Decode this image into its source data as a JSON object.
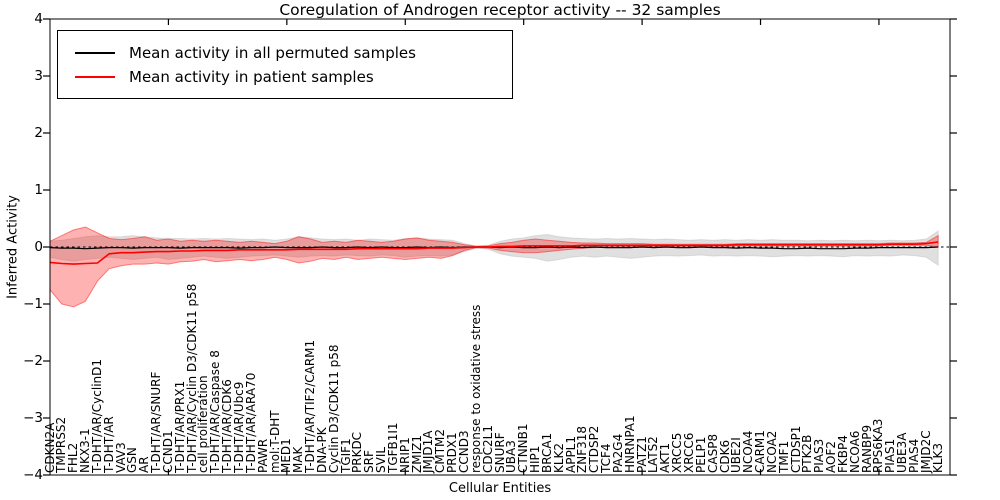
{
  "figure": {
    "title": "Coregulation of Androgen receptor activity -- 32 samples",
    "xlabel": "Cellular Entities",
    "ylabel": "Inferred Activity"
  },
  "legend": {
    "items": [
      {
        "label": "Mean activity in all permuted samples",
        "color": "#000000"
      },
      {
        "label": "Mean activity in patient samples",
        "color": "#ff0000"
      }
    ]
  },
  "chart_data": {
    "type": "line",
    "title": "Coregulation of Androgen receptor activity -- 32 samples",
    "xlabel": "Cellular Entities",
    "ylabel": "Inferred Activity",
    "ylim": [
      -4,
      4
    ],
    "yticks": [
      4,
      3,
      2,
      1,
      0,
      -1,
      -2,
      -3,
      -4
    ],
    "yticklabels": [
      "4",
      "3",
      "2",
      "1",
      "0",
      "−1",
      "−2",
      "−3",
      "−4"
    ],
    "xtick_interval": 10,
    "grid": false,
    "legend_position": "upper left",
    "zero_line": {
      "style": "dashed",
      "color": "#000000"
    },
    "categories": [
      "CDKN2A",
      "TMPRSS2",
      "FHL2",
      "NKX3-1",
      "T-DHT/AR/CyclinD1",
      "T-DHT/AR",
      "VAV3",
      "GSN",
      "AR",
      "T-DHT/AR/SNURF",
      "CCND1",
      "T-DHT/AR/PRX1",
      "T-DHT/AR/Cyclin D3/CDK11 p58",
      "cell proliferation",
      "T-DHT/AR/Caspase 8",
      "T-DHT/AR/CDK6",
      "T-DHT/AR/Ubc9",
      "T-DHT/AR/ARA70",
      "PAWR",
      "mol:T-DHT",
      "MED1",
      "MAK",
      "T-DHT/AR/TIF2/CARM1",
      "DNA-PK",
      "Cyclin D3/CDK11 p58",
      "TGIF1",
      "PRKDC",
      "SRF",
      "SVIL",
      "TGFB1I1",
      "NRIP1",
      "ZMIZ1",
      "JMJD1A",
      "CMTM2",
      "PRDX1",
      "CCND3",
      "response to oxidative stress",
      "CDC2L1",
      "SNURF",
      "UBA3",
      "CTNNB1",
      "HIP1",
      "BRCA1",
      "KLK2",
      "APPL1",
      "ZNF318",
      "CTDSP2",
      "TCF4",
      "PA2G4",
      "HNRNPA1",
      "PATZ1",
      "LATS2",
      "AKT1",
      "XRCC5",
      "XRCC6",
      "PELP1",
      "CASP8",
      "CDK6",
      "UBE2I",
      "NCOA4",
      "CARM1",
      "NCOA2",
      "TMF1",
      "CTDSP1",
      "PTK2B",
      "PIAS3",
      "AOF2",
      "FKBP4",
      "NCOA6",
      "RANBP9",
      "RPS6KA3",
      "PIAS1",
      "UBE3A",
      "PIAS4",
      "JMJD2C",
      "KLK3"
    ],
    "series": [
      {
        "name": "Mean activity in all permuted samples",
        "color": "#000000",
        "band_color": "#999999",
        "band_opacity": 0.3,
        "values": [
          -0.01,
          -0.02,
          -0.02,
          -0.03,
          -0.02,
          -0.01,
          -0.01,
          -0.02,
          -0.01,
          -0.01,
          -0.01,
          -0.02,
          -0.01,
          -0.01,
          -0.01,
          -0.01,
          -0.02,
          -0.01,
          -0.01,
          0,
          -0.01,
          -0.01,
          -0.01,
          0,
          -0.01,
          -0.01,
          0,
          -0.01,
          0,
          -0.01,
          -0.01,
          0,
          -0.01,
          0,
          -0.01,
          0,
          0,
          0,
          -0.01,
          0,
          -0.01,
          -0.01,
          0,
          -0.01,
          0,
          -0.01,
          0,
          -0.01,
          -0.01,
          -0.01,
          0,
          -0.01,
          0,
          -0.01,
          -0.01,
          0,
          -0.01,
          -0.01,
          -0.02,
          -0.01,
          -0.02,
          -0.02,
          -0.03,
          -0.03,
          -0.02,
          -0.03,
          -0.03,
          -0.03,
          -0.02,
          -0.02,
          -0.01,
          -0.01,
          -0.01,
          -0.01,
          -0.01,
          0
        ],
        "band_upper": [
          0.1,
          0.12,
          0.15,
          0.18,
          0.2,
          0.18,
          0.18,
          0.2,
          0.18,
          0.16,
          0.15,
          0.15,
          0.14,
          0.15,
          0.14,
          0.15,
          0.14,
          0.13,
          0.14,
          0.12,
          0.14,
          0.18,
          0.16,
          0.14,
          0.13,
          0.14,
          0.12,
          0.14,
          0.13,
          0.12,
          0.15,
          0.16,
          0.14,
          0.13,
          0.12,
          0.06,
          0.02,
          0.03,
          0.1,
          0.14,
          0.16,
          0.2,
          0.22,
          0.18,
          0.16,
          0.15,
          0.14,
          0.15,
          0.14,
          0.15,
          0.14,
          0.13,
          0.14,
          0.13,
          0.12,
          0.13,
          0.12,
          0.13,
          0.12,
          0.13,
          0.12,
          0.13,
          0.12,
          0.12,
          0.11,
          0.12,
          0.11,
          0.12,
          0.11,
          0.12,
          0.11,
          0.12,
          0.11,
          0.12,
          0.14,
          0.28
        ],
        "band_lower": [
          -0.18,
          -0.22,
          -0.25,
          -0.22,
          -0.2,
          -0.18,
          -0.2,
          -0.22,
          -0.2,
          -0.18,
          -0.22,
          -0.2,
          -0.18,
          -0.16,
          -0.18,
          -0.2,
          -0.18,
          -0.16,
          -0.15,
          -0.14,
          -0.16,
          -0.18,
          -0.16,
          -0.15,
          -0.16,
          -0.14,
          -0.15,
          -0.16,
          -0.14,
          -0.15,
          -0.18,
          -0.16,
          -0.15,
          -0.16,
          -0.14,
          -0.08,
          -0.02,
          -0.04,
          -0.12,
          -0.16,
          -0.18,
          -0.2,
          -0.25,
          -0.22,
          -0.18,
          -0.16,
          -0.18,
          -0.16,
          -0.18,
          -0.2,
          -0.18,
          -0.16,
          -0.15,
          -0.16,
          -0.15,
          -0.14,
          -0.16,
          -0.15,
          -0.16,
          -0.15,
          -0.16,
          -0.17,
          -0.16,
          -0.15,
          -0.16,
          -0.15,
          -0.16,
          -0.17,
          -0.15,
          -0.16,
          -0.15,
          -0.16,
          -0.14,
          -0.15,
          -0.18,
          -0.32
        ]
      },
      {
        "name": "Mean activity in patient samples",
        "color": "#ff0000",
        "band_color": "#ff0000",
        "band_opacity": 0.3,
        "values": [
          -0.27,
          -0.29,
          -0.3,
          -0.29,
          -0.28,
          -0.12,
          -0.1,
          -0.1,
          -0.09,
          -0.08,
          -0.08,
          -0.07,
          -0.07,
          -0.06,
          -0.06,
          -0.06,
          -0.05,
          -0.05,
          -0.05,
          -0.05,
          -0.05,
          -0.04,
          -0.04,
          -0.04,
          -0.04,
          -0.04,
          -0.03,
          -0.03,
          -0.03,
          -0.03,
          -0.03,
          -0.03,
          -0.02,
          -0.02,
          -0.02,
          -0.01,
          0,
          0,
          0.01,
          0.01,
          0.02,
          0.02,
          0.02,
          0.02,
          0.02,
          0.03,
          0.03,
          0.03,
          0.03,
          0.03,
          0.03,
          0.03,
          0.03,
          0.03,
          0.03,
          0.03,
          0.03,
          0.03,
          0.04,
          0.04,
          0.04,
          0.04,
          0.04,
          0.04,
          0.04,
          0.04,
          0.04,
          0.04,
          0.04,
          0.04,
          0.04,
          0.05,
          0.05,
          0.05,
          0.06,
          0.09
        ],
        "band_upper": [
          0.1,
          0.2,
          0.3,
          0.35,
          0.25,
          0.15,
          0.13,
          0.15,
          0.18,
          0.12,
          0.14,
          0.1,
          0.12,
          0.1,
          0.12,
          0.1,
          0.08,
          0.1,
          0.08,
          0.06,
          0.1,
          0.18,
          0.14,
          0.08,
          0.1,
          0.08,
          0.12,
          0.1,
          0.08,
          0.1,
          0.14,
          0.16,
          0.12,
          0.1,
          0.08,
          0.04,
          0.01,
          0.02,
          0.06,
          0.08,
          0.12,
          0.14,
          0.12,
          0.1,
          0.08,
          0.07,
          0.07,
          0.06,
          0.06,
          0.06,
          0.06,
          0.05,
          0.05,
          0.05,
          0.05,
          0.05,
          0.05,
          0.05,
          0.06,
          0.06,
          0.06,
          0.06,
          0.06,
          0.06,
          0.06,
          0.06,
          0.06,
          0.06,
          0.06,
          0.06,
          0.06,
          0.07,
          0.07,
          0.07,
          0.08,
          0.2
        ],
        "band_lower": [
          -0.75,
          -1.0,
          -1.05,
          -0.95,
          -0.6,
          -0.38,
          -0.33,
          -0.3,
          -0.3,
          -0.28,
          -0.3,
          -0.26,
          -0.25,
          -0.22,
          -0.26,
          -0.24,
          -0.22,
          -0.24,
          -0.22,
          -0.18,
          -0.22,
          -0.28,
          -0.25,
          -0.2,
          -0.22,
          -0.18,
          -0.22,
          -0.2,
          -0.18,
          -0.2,
          -0.22,
          -0.2,
          -0.18,
          -0.2,
          -0.15,
          -0.06,
          -0.01,
          -0.02,
          -0.06,
          -0.08,
          -0.1,
          -0.1,
          -0.08,
          -0.06,
          -0.04,
          -0.02,
          -0.01,
          0.0,
          0.0,
          0.01,
          0.01,
          0.01,
          0.01,
          0.01,
          0.01,
          0.01,
          0.01,
          0.01,
          0.02,
          0.02,
          0.02,
          0.02,
          0.02,
          0.02,
          0.02,
          0.02,
          0.02,
          0.02,
          0.02,
          0.02,
          0.02,
          0.03,
          0.03,
          0.03,
          0.03,
          0.0
        ]
      }
    ]
  }
}
